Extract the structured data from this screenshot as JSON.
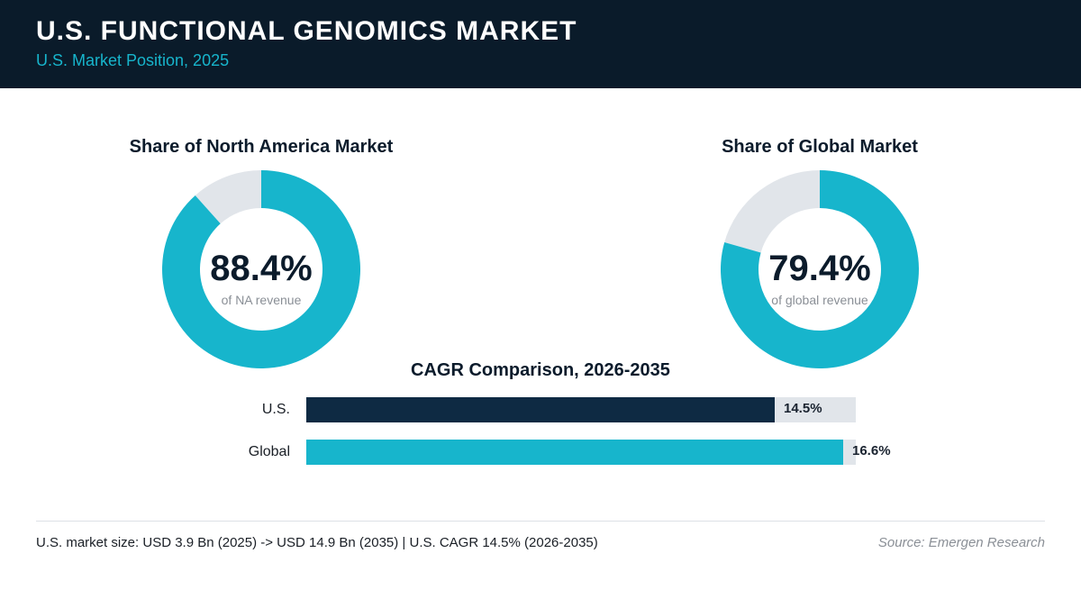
{
  "header": {
    "title": "U.S. FUNCTIONAL GENOMICS MARKET",
    "subtitle": "U.S. Market Position, 2025"
  },
  "colors": {
    "header_bg": "#0a1b2a",
    "accent": "#17b5cc",
    "dark_bar": "#0e2a43",
    "track": "#e1e5ea"
  },
  "chart_data": [
    {
      "type": "pie",
      "title": "Share of North America Market",
      "value": 88.4,
      "value_label": "88.4%",
      "caption": "of NA revenue"
    },
    {
      "type": "pie",
      "title": "Share of Global Market",
      "value": 79.4,
      "value_label": "79.4%",
      "caption": "of global revenue"
    },
    {
      "type": "bar",
      "title": "CAGR Comparison, 2026-2035",
      "categories": [
        "U.S.",
        "Global"
      ],
      "values": [
        14.5,
        16.6
      ],
      "value_labels": [
        "14.5%",
        "16.6%"
      ],
      "xlim": [
        0,
        17.0
      ]
    }
  ],
  "footer": {
    "note": "U.S. market size: USD 3.9 Bn (2025) -> USD 14.9 Bn (2035)  |  U.S. CAGR 14.5% (2026-2035)",
    "source": "Source: Emergen Research"
  }
}
